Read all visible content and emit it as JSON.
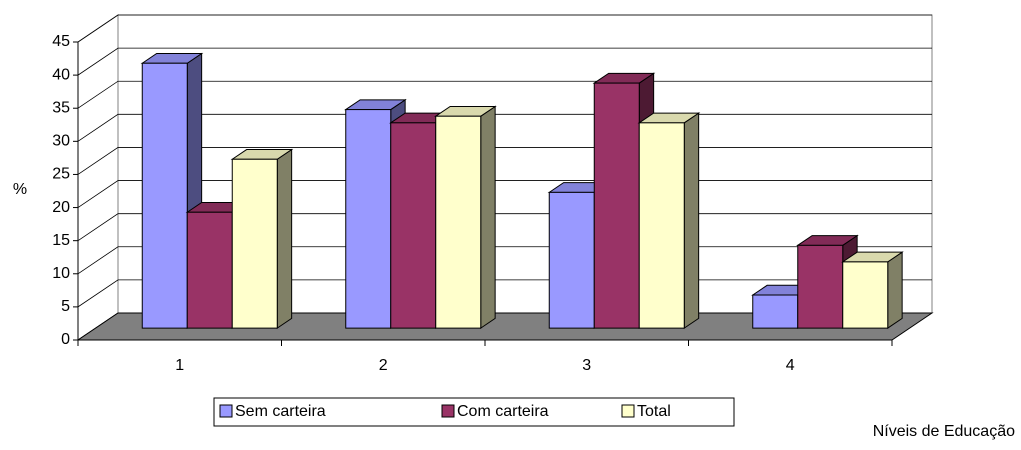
{
  "chart_data": {
    "type": "bar3d",
    "categories": [
      "1",
      "2",
      "3",
      "4"
    ],
    "series": [
      {
        "name": "Sem carteira",
        "color": "#9999ff",
        "values": [
          40,
          33,
          20.5,
          5
        ]
      },
      {
        "name": "Com carteira",
        "color": "#993366",
        "values": [
          17.5,
          31,
          37,
          12.5
        ]
      },
      {
        "name": "Total",
        "color": "#ffffcc",
        "values": [
          25.5,
          32,
          31,
          10
        ]
      }
    ],
    "ylabel": "%",
    "xlabel": "Níveis de Educação",
    "ylim": [
      0,
      45
    ],
    "yticks": [
      0,
      5,
      10,
      15,
      20,
      25,
      30,
      35,
      40,
      45
    ],
    "grid": true,
    "legend": "bottom"
  }
}
